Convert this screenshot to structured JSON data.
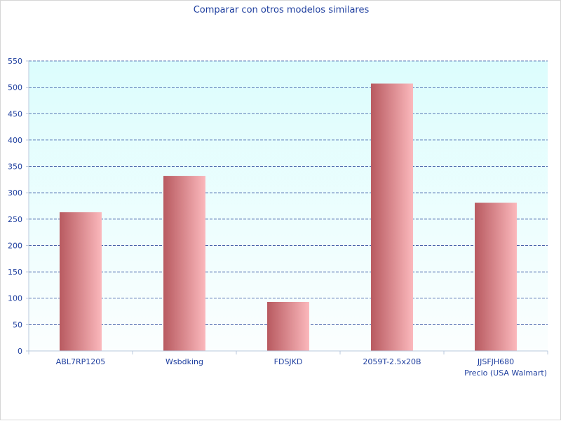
{
  "chart_data": {
    "type": "bar",
    "title": "Comparar con otros modelos similares",
    "categories": [
      "ABL7RP1205",
      "Wsbdking",
      "FDSJKD",
      "2059T-2.5x20B",
      "JJSFJH680"
    ],
    "series": [
      {
        "name": "",
        "values": [
          263,
          332,
          93,
          507,
          281
        ]
      }
    ],
    "xlabel": "Precio (USA Walmart)",
    "ylabel": "",
    "ylim": [
      0,
      550
    ],
    "yticks": [
      0,
      50,
      100,
      150,
      200,
      250,
      300,
      350,
      400,
      450,
      500,
      550
    ],
    "grid": true,
    "legend": "none",
    "colors": {
      "plot_bg_top": "#dcfdfd",
      "plot_bg_bottom": "#fbfefe",
      "grid": "#2f4f9f",
      "bar_dark": "#b85a60",
      "bar_light": "#fbb8bc",
      "text": "#1f3f9f",
      "axis": "#b8c8dc"
    }
  }
}
